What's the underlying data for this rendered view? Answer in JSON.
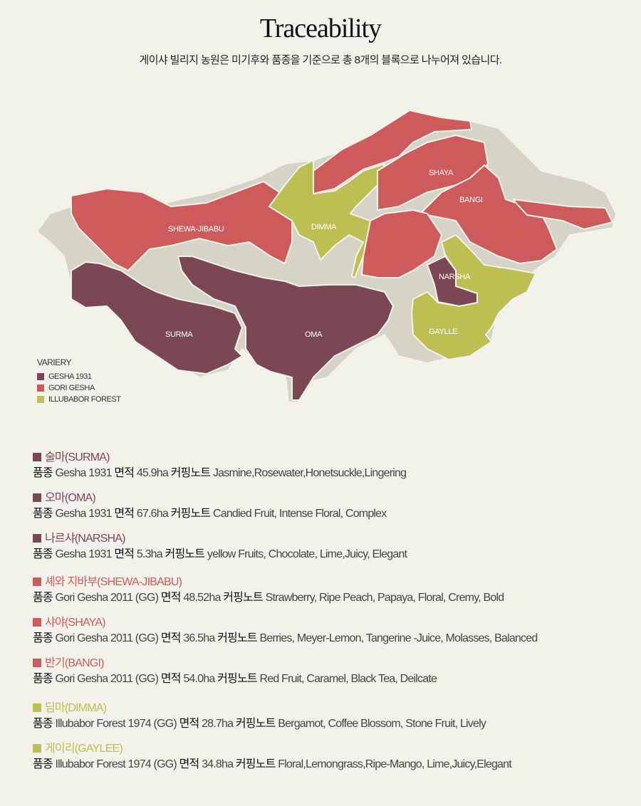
{
  "header": {
    "title": "Traceability",
    "subtitle": "게이샤 빌리지 농원은 미기후와 품종을 기준으로 총 8개의 블록으로 나누어져 있습니다."
  },
  "colors": {
    "background": "#f2f2ea",
    "land": "#d6d4c6",
    "gesha_1931": "#7b4755",
    "gori_gesha": "#cd5b5c",
    "illubabor_forest": "#bcc052"
  },
  "map": {
    "labels": {
      "shewa": "SHEWA-JIBABU",
      "dimma": "DIMMA",
      "shaya": "SHAYA",
      "bangi": "BANGI",
      "narsha": "NARSHA",
      "surma": "SURMA",
      "oma": "OMA",
      "gaylle": "GAYLLE"
    }
  },
  "legend": {
    "title": "VARIERY",
    "items": [
      "GESHA 1931",
      "GORI GESHA",
      "ILLUBABOR FOREST"
    ]
  },
  "field_labels": {
    "variety": "품종",
    "area": "면적",
    "cupping": "커핑노트"
  },
  "blocks": [
    {
      "name": "술마(SURMA)",
      "variety": "Gesha 1931",
      "area": "45.9ha",
      "notes": "Jasmine,Rosewater,Honetsuckle,Lingering"
    },
    {
      "name": "오마(OMA)",
      "variety": "Gesha 1931",
      "area": "67.6ha",
      "notes": "Candied Fruit, Intense Floral, Complex"
    },
    {
      "name": "나르샤(NARSHA)",
      "variety": "Gesha 1931",
      "area": "5.3ha",
      "notes": "yellow Fruits, Chocolate, Lime,Juicy, Elegant"
    },
    {
      "name": "셰와 지바부(SHEWA-JIBABU)",
      "variety": "Gori Gesha 2011 (GG)",
      "area": "48.52ha",
      "notes": "Strawberry, Ripe Peach, Papaya, Floral, Cremy, Bold"
    },
    {
      "name": "샤야(SHAYA)",
      "variety": "Gori Gesha 2011 (GG)",
      "area": "36.5ha",
      "notes": "Berries, Meyer-Lemon, Tangerine -Juice, Molasses, Balanced"
    },
    {
      "name": "반기(BANGI)",
      "variety": "Gori Gesha 2011 (GG)",
      "area": "54.0ha",
      "notes": "Red Fruit, Caramel, Black Tea, Deilcate"
    },
    {
      "name": "딤마(DIMMA)",
      "variety": "Illubabor Forest 1974 (GG)",
      "area": "28.7ha",
      "notes": "Bergamot, Coffee Blossom, Stone Fruit, Lively"
    },
    {
      "name": "게이리(GAYLEE)",
      "variety": "Illubabor Forest 1974 (GG)",
      "area": "34.8ha",
      "notes": "Floral,Lemongrass,Ripe-Mango, Lime,Juicy,Elegant"
    }
  ]
}
